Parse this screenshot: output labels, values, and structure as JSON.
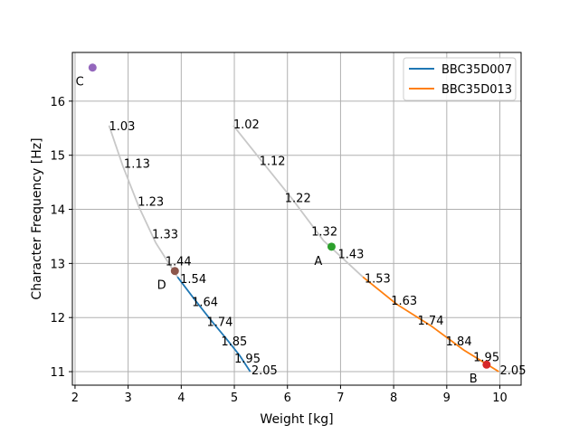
{
  "chart_data": {
    "type": "line",
    "xlabel": "Weight [kg]",
    "ylabel": "Character Frequency [Hz]",
    "xlim": [
      1.95,
      10.4
    ],
    "ylim": [
      10.75,
      16.9
    ],
    "xticks": [
      "2",
      "3",
      "4",
      "5",
      "6",
      "7",
      "8",
      "9",
      "10"
    ],
    "yticks": [
      "11",
      "12",
      "13",
      "14",
      "15",
      "16"
    ],
    "grid": true,
    "legend_position": "top-right",
    "series": [
      {
        "name": "BBC35D007",
        "color": "#1f77b4",
        "gray_color": "#c8c8c8",
        "x": [
          2.64,
          2.9,
          3.2,
          3.52,
          3.93,
          4.24,
          4.56,
          4.84,
          5.1,
          5.3
        ],
        "y": [
          15.55,
          14.8,
          14.05,
          13.38,
          12.75,
          12.35,
          11.95,
          11.62,
          11.3,
          11.0
        ],
        "blue_from_index": 4,
        "labels": [
          {
            "text": "1.03",
            "x": 2.64,
            "y": 15.55
          },
          {
            "text": "1.13",
            "x": 2.92,
            "y": 14.85
          },
          {
            "text": "1.23",
            "x": 3.18,
            "y": 14.15
          },
          {
            "text": "1.33",
            "x": 3.45,
            "y": 13.55
          },
          {
            "text": "1.44",
            "x": 3.7,
            "y": 13.05
          },
          {
            "text": "1.54",
            "x": 3.98,
            "y": 12.72
          },
          {
            "text": "1.64",
            "x": 4.2,
            "y": 12.3
          },
          {
            "text": "1.74",
            "x": 4.48,
            "y": 11.93
          },
          {
            "text": "1.85",
            "x": 4.75,
            "y": 11.57
          },
          {
            "text": "1.95",
            "x": 5.0,
            "y": 11.25
          },
          {
            "text": "2.05",
            "x": 5.32,
            "y": 11.03
          }
        ]
      },
      {
        "name": "BBC35D013",
        "color": "#ff7f0e",
        "gray_color": "#c8c8c8",
        "x": [
          4.98,
          5.55,
          6.1,
          6.68,
          7.42,
          8.05,
          8.7,
          9.32,
          9.98
        ],
        "y": [
          15.55,
          14.85,
          14.18,
          13.42,
          12.75,
          12.25,
          11.85,
          11.4,
          11.0
        ],
        "orange_from_index": 4,
        "labels": [
          {
            "text": "1.02",
            "x": 4.98,
            "y": 15.58
          },
          {
            "text": "1.12",
            "x": 5.47,
            "y": 14.9
          },
          {
            "text": "1.22",
            "x": 5.95,
            "y": 14.22
          },
          {
            "text": "1.32",
            "x": 6.45,
            "y": 13.6
          },
          {
            "text": "1.43",
            "x": 6.95,
            "y": 13.18
          },
          {
            "text": "1.53",
            "x": 7.45,
            "y": 12.73
          },
          {
            "text": "1.63",
            "x": 7.95,
            "y": 12.32
          },
          {
            "text": "1.74",
            "x": 8.45,
            "y": 11.95
          },
          {
            "text": "1.84",
            "x": 8.98,
            "y": 11.57
          },
          {
            "text": "1.95",
            "x": 9.5,
            "y": 11.28
          },
          {
            "text": "2.05",
            "x": 10.0,
            "y": 11.03
          }
        ]
      }
    ],
    "points": [
      {
        "label": "C",
        "x": 2.33,
        "y": 16.62,
        "color": "#9467bd",
        "label_dx": -0.24,
        "label_dy": -0.25
      },
      {
        "label": "A",
        "x": 6.83,
        "y": 13.31,
        "color": "#2ca02c",
        "label_dx": -0.25,
        "label_dy": -0.25
      },
      {
        "label": "D",
        "x": 3.88,
        "y": 12.86,
        "color": "#8c564b",
        "label_dx": -0.25,
        "label_dy": -0.25
      },
      {
        "label": "B",
        "x": 9.75,
        "y": 11.13,
        "color": "#d62728",
        "label_dx": -0.25,
        "label_dy": -0.25
      }
    ]
  }
}
